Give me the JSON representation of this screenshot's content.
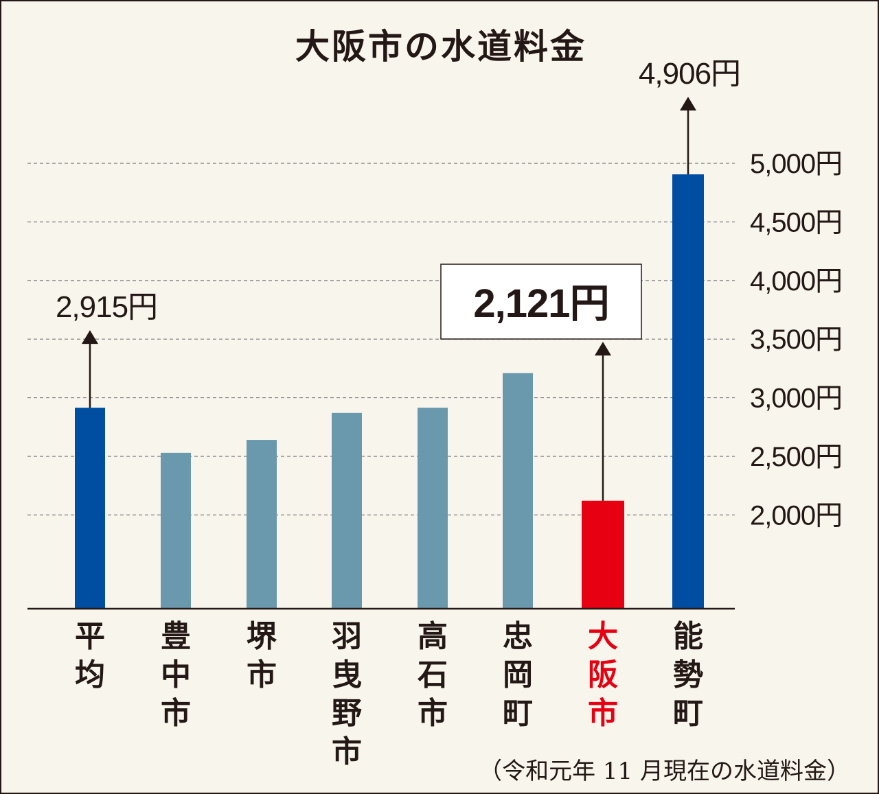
{
  "title": "大阪市の水道料金",
  "source_note": "（令和元年 11 月現在の水道料金）",
  "colors": {
    "highlight_blue": "#004ea2",
    "other": "#6a98ad",
    "osaka": "#e60012",
    "text": "#231815",
    "osaka_label": "#e60012"
  },
  "chart_data": {
    "type": "bar",
    "title": "大阪市の水道料金",
    "categories": [
      "平均",
      "豊中市",
      "堺市",
      "羽曳野市",
      "高石市",
      "忠岡町",
      "大阪市",
      "能勢町"
    ],
    "values": [
      2915,
      2530,
      2640,
      2870,
      2915,
      3210,
      2121,
      4906
    ],
    "ylim": [
      1200,
      5000
    ],
    "yticks": [
      2000,
      2500,
      3000,
      3500,
      4000,
      4500,
      5000
    ],
    "ytick_labels": [
      "2,000円",
      "2,500円",
      "3,000円",
      "3,500円",
      "4,000円",
      "4,500円",
      "5,000円"
    ],
    "bar_styles": [
      "highlight_blue",
      "other",
      "other",
      "other",
      "other",
      "other",
      "osaka",
      "highlight_blue"
    ],
    "gridlines": "dashed",
    "annotations": [
      {
        "category": "平均",
        "text": "2,915円",
        "boxed": false
      },
      {
        "category": "大阪市",
        "text": "2,121円",
        "boxed": true
      },
      {
        "category": "能勢町",
        "text": "4,906円",
        "boxed": false
      }
    ]
  }
}
